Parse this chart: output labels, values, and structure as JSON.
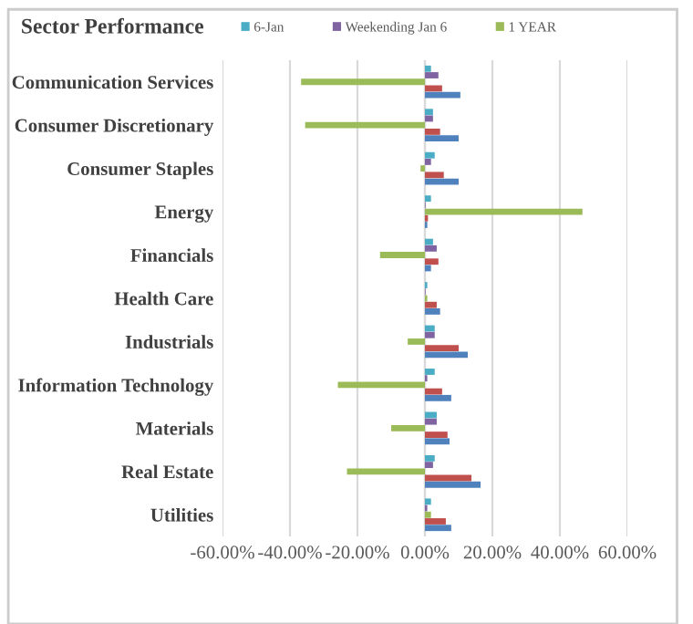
{
  "chart_data": {
    "type": "bar",
    "orientation": "horizontal",
    "title": "Sector Performance",
    "categories": [
      "Communication Services",
      "Consumer Discretionary",
      "Consumer Staples",
      "Energy",
      "Financials",
      "Health Care",
      "Industrials",
      "Information Technology",
      "Materials",
      "Real Estate",
      "Utilities"
    ],
    "series": [
      {
        "name": "6-Jan",
        "color": "#4bacc6",
        "values": [
          1.8,
          2.4,
          2.9,
          1.8,
          2.4,
          0.7,
          2.9,
          2.9,
          3.5,
          2.9,
          1.8
        ]
      },
      {
        "name": "Weekending Jan 6",
        "color": "#8064a2",
        "values": [
          4,
          2.4,
          1.8,
          0.2,
          3.5,
          0.2,
          2.9,
          0.7,
          3.5,
          2.4,
          0.7
        ]
      },
      {
        "name": "1 YEAR",
        "color": "#9bbb59",
        "values": [
          -36.7,
          -35.5,
          -1.3,
          46.7,
          -13.3,
          0.7,
          -5.1,
          -25.8,
          -10,
          -23.1,
          1.8
        ]
      },
      {
        "color": "#c0504d",
        "values": [
          5.1,
          4.5,
          5.6,
          0.9,
          4,
          3.5,
          10,
          5.1,
          6.7,
          13.8,
          6.2
        ]
      },
      {
        "color": "#4f81bd",
        "values": [
          10.5,
          10,
          10,
          0.7,
          1.8,
          4.5,
          12.7,
          7.8,
          7.3,
          16.5,
          7.8
        ]
      }
    ],
    "xlim": [
      -60,
      60
    ],
    "xticks": [
      {
        "value": -60,
        "label": "-60.00%"
      },
      {
        "value": -40,
        "label": "-40.00%"
      },
      {
        "value": -20,
        "label": "-20.00%"
      },
      {
        "value": 0,
        "label": "0.00%"
      },
      {
        "value": 20,
        "label": "20.00%"
      },
      {
        "value": 40,
        "label": "40.00%"
      },
      {
        "value": 60,
        "label": "60.00%"
      }
    ],
    "grid": "x",
    "legend": "top"
  }
}
